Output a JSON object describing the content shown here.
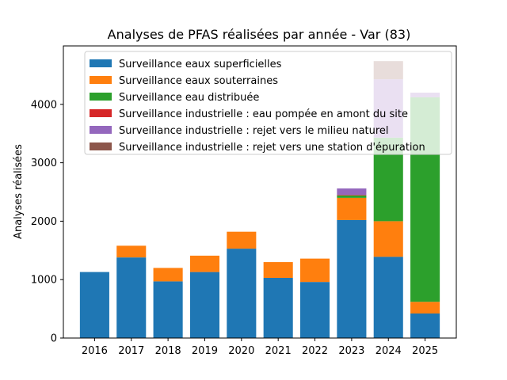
{
  "chart_data": {
    "type": "bar",
    "stacked": true,
    "title": "Analyses de PFAS réalisées par année - Var (83)",
    "xlabel": "",
    "ylabel": "Analyses réalisées",
    "ylim": [
      0,
      5000
    ],
    "yticks": [
      0,
      1000,
      2000,
      3000,
      4000
    ],
    "categories": [
      "2016",
      "2017",
      "2018",
      "2019",
      "2020",
      "2021",
      "2022",
      "2023",
      "2024",
      "2025"
    ],
    "legend_position": "top-center",
    "grid": false,
    "series": [
      {
        "name": "Surveillance eaux superficielles",
        "color": "#1f77b4",
        "values": [
          1130,
          1380,
          970,
          1130,
          1530,
          1030,
          960,
          2020,
          1390,
          420
        ]
      },
      {
        "name": "Surveillance eaux souterraines",
        "color": "#ff7f0e",
        "values": [
          0,
          200,
          230,
          280,
          290,
          270,
          400,
          380,
          610,
          200
        ]
      },
      {
        "name": "Surveillance eau distribuée",
        "color": "#2ca02c",
        "values": [
          0,
          0,
          0,
          0,
          0,
          0,
          0,
          40,
          1430,
          3500
        ]
      },
      {
        "name": "Surveillance industrielle : eau pompée en amont du site",
        "color": "#d62728",
        "values": [
          0,
          0,
          0,
          0,
          0,
          0,
          0,
          10,
          0,
          0
        ]
      },
      {
        "name": "Surveillance industrielle : rejet vers le milieu naturel",
        "color": "#9467bd",
        "values": [
          0,
          0,
          0,
          0,
          0,
          0,
          0,
          110,
          1000,
          80
        ]
      },
      {
        "name": "Surveillance industrielle : rejet vers une station d'épuration",
        "color": "#8c564b",
        "values": [
          0,
          0,
          0,
          0,
          0,
          0,
          0,
          0,
          310,
          0
        ]
      }
    ]
  }
}
